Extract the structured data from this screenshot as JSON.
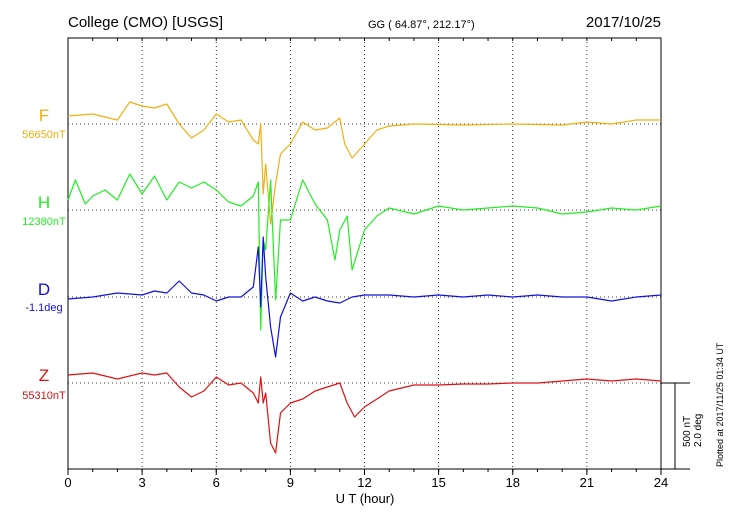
{
  "header": {
    "station": "College (CMO)  [USGS]",
    "coords": "GG ( 64.87°, 212.17°)",
    "date": "2017/10/25"
  },
  "footer_note": "Plotted at 2017/11/25 01:34 UT",
  "scale_bar": {
    "line1": "500 nT",
    "line2": "2.0 deg"
  },
  "chart_data": {
    "type": "line",
    "xlabel": "U T (hour)",
    "xlim": [
      0,
      24
    ],
    "xticks": [
      "0",
      "3",
      "6",
      "9",
      "12",
      "15",
      "18",
      "21",
      "24"
    ],
    "series": [
      {
        "name": "F",
        "baseline_label": "56650nT",
        "color": "#f0b010",
        "points": [
          [
            0,
            -8
          ],
          [
            1,
            -10
          ],
          [
            2,
            -4
          ],
          [
            2.5,
            -22
          ],
          [
            3,
            -18
          ],
          [
            3.5,
            -16
          ],
          [
            4,
            -20
          ],
          [
            4.5,
            0
          ],
          [
            5,
            14
          ],
          [
            5.5,
            6
          ],
          [
            6,
            -10
          ],
          [
            6.5,
            -2
          ],
          [
            7,
            -4
          ],
          [
            7.5,
            16
          ],
          [
            7.7,
            20
          ],
          [
            7.8,
            0
          ],
          [
            7.9,
            70
          ],
          [
            8.0,
            40
          ],
          [
            8.2,
            100
          ],
          [
            8.4,
            60
          ],
          [
            8.6,
            30
          ],
          [
            9,
            20
          ],
          [
            9.5,
            -2
          ],
          [
            10,
            6
          ],
          [
            10.5,
            4
          ],
          [
            11,
            -6
          ],
          [
            11.2,
            20
          ],
          [
            11.5,
            34
          ],
          [
            12,
            20
          ],
          [
            12.5,
            6
          ],
          [
            13,
            2
          ],
          [
            14,
            0
          ],
          [
            16,
            1
          ],
          [
            18,
            0
          ],
          [
            20,
            1
          ],
          [
            21,
            -2
          ],
          [
            22,
            0
          ],
          [
            23,
            -4
          ],
          [
            24,
            -4
          ]
        ]
      },
      {
        "name": "H",
        "baseline_label": "12380nT",
        "color": "#22ee22",
        "points": [
          [
            0,
            -10
          ],
          [
            0.3,
            -30
          ],
          [
            0.7,
            -6
          ],
          [
            1,
            -14
          ],
          [
            1.5,
            -20
          ],
          [
            2,
            -10
          ],
          [
            2.5,
            -36
          ],
          [
            3,
            -16
          ],
          [
            3.5,
            -34
          ],
          [
            4,
            -10
          ],
          [
            4.5,
            -28
          ],
          [
            5,
            -22
          ],
          [
            5.5,
            -28
          ],
          [
            6,
            -20
          ],
          [
            6.5,
            -8
          ],
          [
            7,
            -4
          ],
          [
            7.5,
            -14
          ],
          [
            7.7,
            -28
          ],
          [
            7.8,
            120
          ],
          [
            7.9,
            30
          ],
          [
            8,
            40
          ],
          [
            8.2,
            -30
          ],
          [
            8.4,
            90
          ],
          [
            8.6,
            10
          ],
          [
            9,
            10
          ],
          [
            9.5,
            -30
          ],
          [
            10,
            -6
          ],
          [
            10.5,
            10
          ],
          [
            10.8,
            50
          ],
          [
            11,
            20
          ],
          [
            11.3,
            6
          ],
          [
            11.5,
            60
          ],
          [
            12,
            20
          ],
          [
            12.5,
            6
          ],
          [
            13,
            -2
          ],
          [
            14,
            4
          ],
          [
            15,
            -4
          ],
          [
            16,
            0
          ],
          [
            17,
            -2
          ],
          [
            18,
            -4
          ],
          [
            19,
            -2
          ],
          [
            20,
            4
          ],
          [
            21,
            2
          ],
          [
            22,
            -2
          ],
          [
            23,
            0
          ],
          [
            24,
            -4
          ]
        ]
      },
      {
        "name": "D",
        "baseline_label": "-1.1deg",
        "color": "#1010e0",
        "points": [
          [
            0,
            2
          ],
          [
            1,
            0
          ],
          [
            2,
            -4
          ],
          [
            3,
            -2
          ],
          [
            3.5,
            -6
          ],
          [
            4,
            -4
          ],
          [
            4.5,
            -16
          ],
          [
            5,
            -4
          ],
          [
            5.5,
            -2
          ],
          [
            6,
            4
          ],
          [
            6.5,
            0
          ],
          [
            7,
            0
          ],
          [
            7.5,
            -10
          ],
          [
            7.7,
            -50
          ],
          [
            7.8,
            10
          ],
          [
            7.9,
            -60
          ],
          [
            8,
            -20
          ],
          [
            8.2,
            30
          ],
          [
            8.4,
            60
          ],
          [
            8.6,
            20
          ],
          [
            9,
            -4
          ],
          [
            9.5,
            4
          ],
          [
            10,
            0
          ],
          [
            10.5,
            4
          ],
          [
            11,
            6
          ],
          [
            11.5,
            0
          ],
          [
            12,
            -2
          ],
          [
            13,
            -2
          ],
          [
            14,
            0
          ],
          [
            15,
            -2
          ],
          [
            16,
            0
          ],
          [
            17,
            -2
          ],
          [
            18,
            0
          ],
          [
            19,
            -2
          ],
          [
            20,
            0
          ],
          [
            21,
            0
          ],
          [
            22,
            4
          ],
          [
            23,
            0
          ],
          [
            24,
            -2
          ]
        ]
      },
      {
        "name": "Z",
        "baseline_label": "55310nT",
        "color": "#e01010",
        "points": [
          [
            0,
            -8
          ],
          [
            1,
            -10
          ],
          [
            2,
            -4
          ],
          [
            3,
            -10
          ],
          [
            3.5,
            -8
          ],
          [
            4,
            -10
          ],
          [
            4.5,
            4
          ],
          [
            5,
            14
          ],
          [
            5.5,
            8
          ],
          [
            6,
            -6
          ],
          [
            6.5,
            2
          ],
          [
            7,
            0
          ],
          [
            7.5,
            10
          ],
          [
            7.7,
            20
          ],
          [
            7.8,
            -6
          ],
          [
            7.9,
            20
          ],
          [
            8,
            10
          ],
          [
            8.2,
            60
          ],
          [
            8.4,
            70
          ],
          [
            8.6,
            30
          ],
          [
            9,
            20
          ],
          [
            9.5,
            16
          ],
          [
            10,
            8
          ],
          [
            10.5,
            4
          ],
          [
            11,
            0
          ],
          [
            11.3,
            20
          ],
          [
            11.6,
            34
          ],
          [
            12,
            24
          ],
          [
            12.5,
            16
          ],
          [
            13,
            8
          ],
          [
            14,
            2
          ],
          [
            15,
            2
          ],
          [
            16,
            1
          ],
          [
            17,
            1
          ],
          [
            18,
            0
          ],
          [
            19,
            0
          ],
          [
            20,
            -2
          ],
          [
            21,
            -4
          ],
          [
            22,
            -2
          ],
          [
            23,
            -4
          ],
          [
            24,
            -2
          ]
        ]
      }
    ]
  }
}
